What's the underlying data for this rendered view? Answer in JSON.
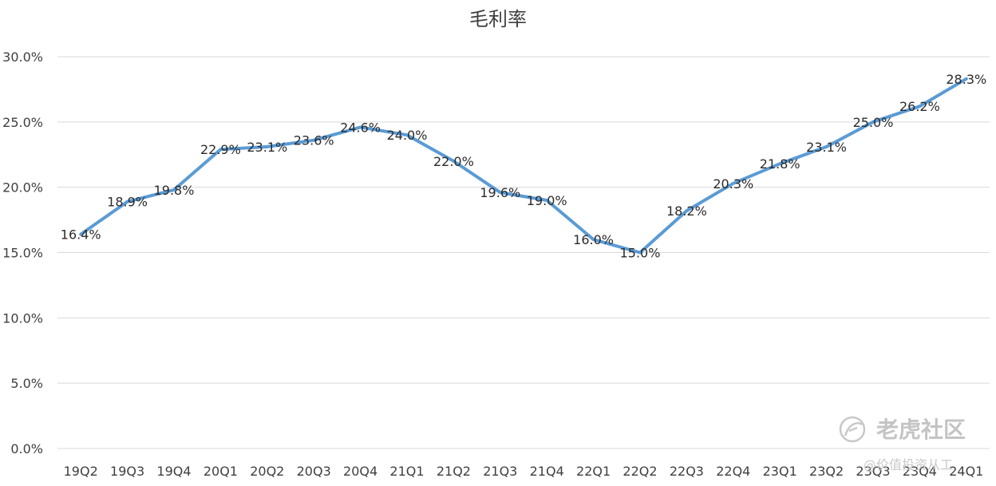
{
  "chart_data": {
    "type": "line",
    "title": "毛利率",
    "categories": [
      "19Q2",
      "19Q3",
      "19Q4",
      "20Q1",
      "20Q2",
      "20Q3",
      "20Q4",
      "21Q1",
      "21Q2",
      "21Q3",
      "21Q4",
      "22Q1",
      "22Q2",
      "22Q3",
      "22Q4",
      "23Q1",
      "23Q2",
      "23Q3",
      "23Q4",
      "24Q1"
    ],
    "series": [
      {
        "values": [
          16.4,
          18.9,
          19.8,
          22.9,
          23.1,
          23.6,
          24.6,
          24.0,
          22.0,
          19.6,
          19.0,
          16.0,
          15.0,
          18.2,
          20.3,
          21.8,
          23.1,
          25.0,
          26.2,
          28.3
        ]
      }
    ],
    "data_labels": [
      "16.4%",
      "18.9%",
      "19.8%",
      "22.9%",
      "23.1%",
      "23.6%",
      "24.6%",
      "24.0%",
      "22.0%",
      "19.6%",
      "19.0%",
      "16.0%",
      "15.0%",
      "18.2%",
      "20.3%",
      "21.8%",
      "23.1%",
      "25.0%",
      "26.2%",
      "28.3%"
    ],
    "y_ticks": [
      0,
      5,
      10,
      15,
      20,
      25,
      30
    ],
    "y_tick_labels": [
      "0.0%",
      "5.0%",
      "10.0%",
      "15.0%",
      "20.0%",
      "25.0%",
      "30.0%"
    ],
    "ylim": [
      0,
      30
    ],
    "grid": true,
    "legend": "none",
    "line_color": "#5b9bd5"
  },
  "watermark": {
    "brand": "老虎社区",
    "handle": "@价值投资从工",
    "icon": "tiger-community-logo-icon"
  }
}
